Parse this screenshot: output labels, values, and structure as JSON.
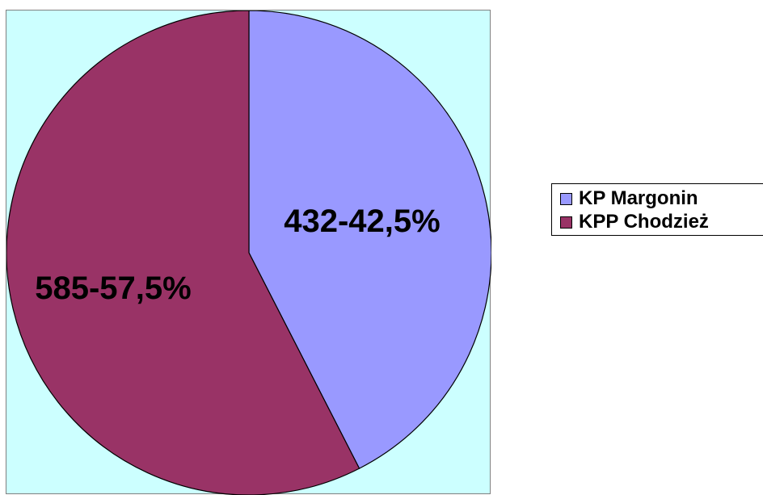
{
  "chart_data": {
    "type": "pie",
    "categories": [
      "KP Margonin",
      "KPP Chodzież"
    ],
    "values": [
      432,
      585
    ],
    "percentages": [
      42.5,
      57.5
    ],
    "data_labels": [
      "432-42,5%",
      "585-57,5%"
    ],
    "colors": [
      "#9999ff",
      "#993366"
    ],
    "plot_background": "#ccffff",
    "legend_position": "right"
  },
  "legend": {
    "items": [
      {
        "label": "KP Margonin",
        "color": "#9999ff"
      },
      {
        "label": "KPP Chodzież",
        "color": "#993366"
      }
    ]
  }
}
